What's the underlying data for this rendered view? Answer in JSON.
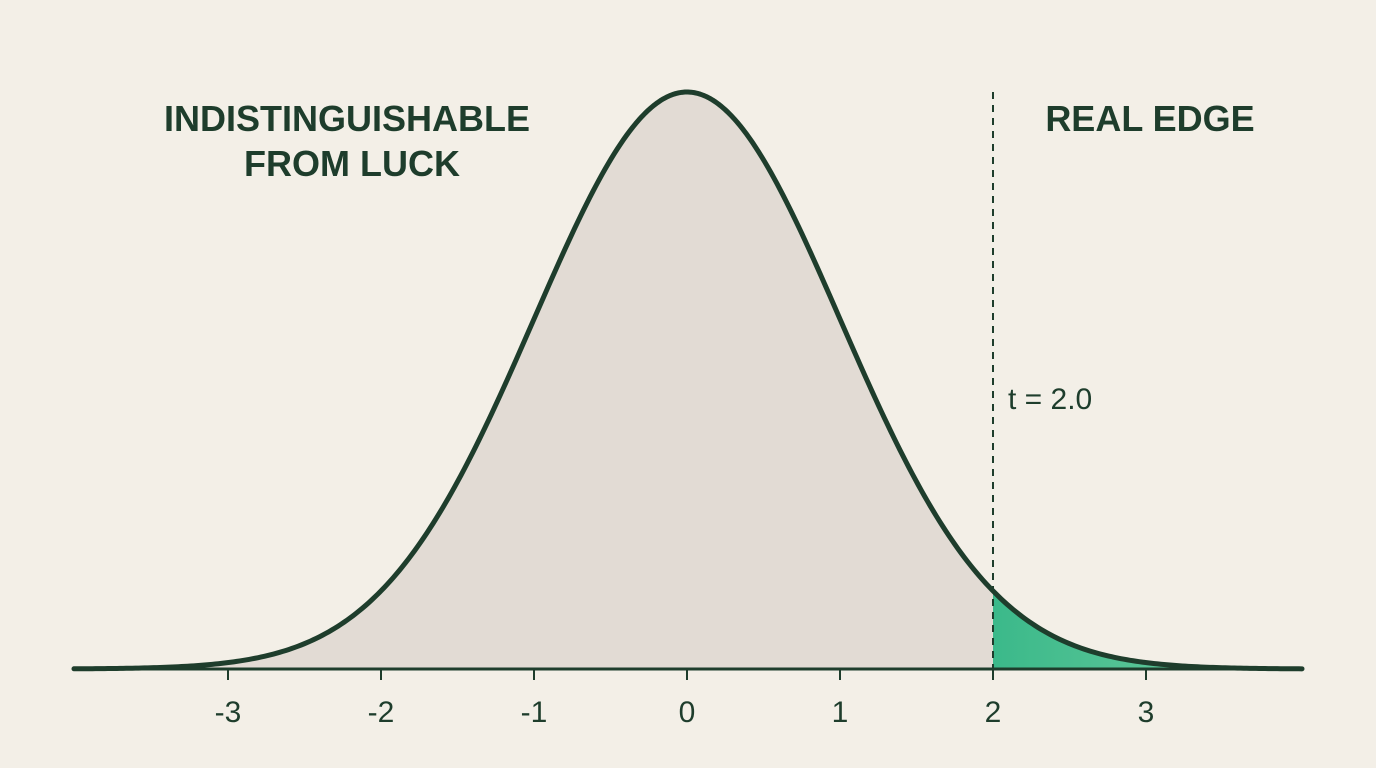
{
  "chart_data": {
    "type": "area",
    "distribution": "standard normal density",
    "mean": 0,
    "sd": 1,
    "xlim": [
      -4,
      4
    ],
    "x_ticks": [
      -3,
      -2,
      -1,
      0,
      1,
      2,
      3
    ],
    "x_tick_labels": [
      "-3",
      "-2",
      "-1",
      "0",
      "1",
      "2",
      "3"
    ],
    "threshold": 2.0,
    "threshold_label": "t = 2.0",
    "region_labels": {
      "left": [
        "INDISTINGUISHABLE",
        "FROM LUCK"
      ],
      "right": "REAL EDGE"
    },
    "grid": false
  },
  "colors": {
    "background": "#f3efe7",
    "curve_stroke": "#1e3d2c",
    "body_fill": "#e2dbd4",
    "tail_fill_start": "#3bb98a",
    "tail_fill_end": "#72cfa1",
    "text": "#1e3d2c"
  }
}
